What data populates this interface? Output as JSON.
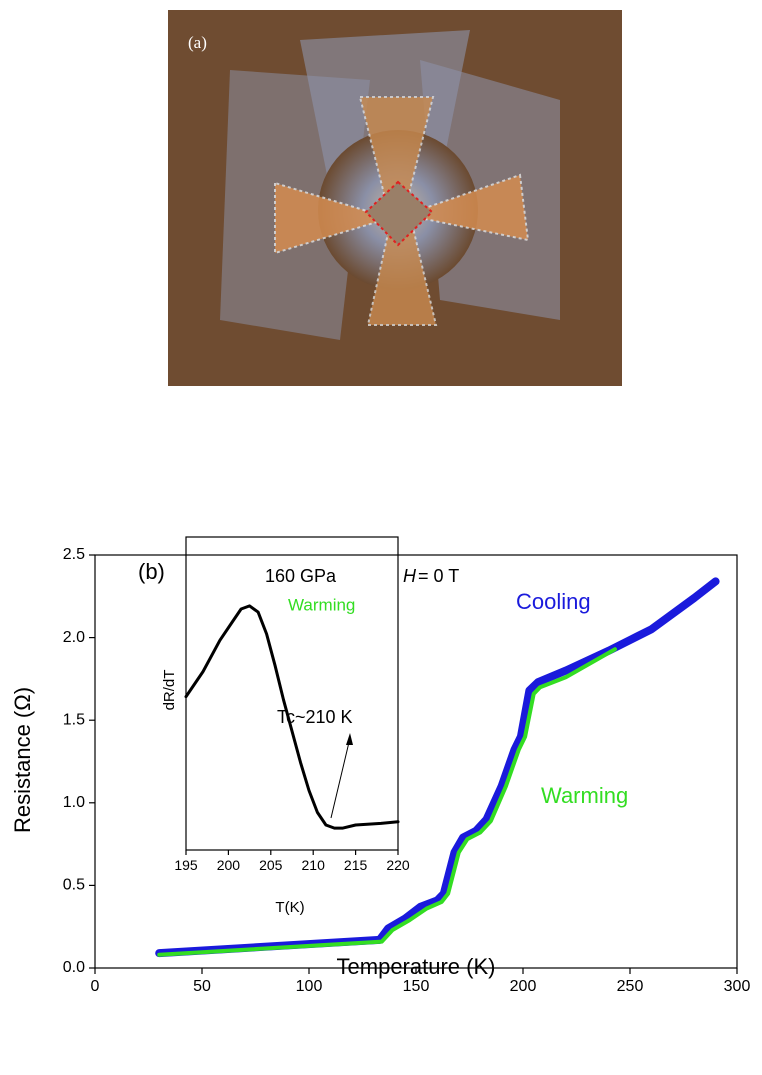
{
  "panel_a": {
    "label": "(a)"
  },
  "chart_data": [
    {
      "type": "line",
      "annotation_label": "(b)",
      "pressure": "160 GPa",
      "field_var": "H",
      "field_value": "= 0 T",
      "xlabel": "Temperature (K)",
      "ylabel": "Resistance (Ω)",
      "xlim": [
        0,
        300
      ],
      "xticks": [
        0,
        50,
        100,
        150,
        200,
        250,
        300
      ],
      "ylim": [
        0,
        2.5
      ],
      "yticks": [
        {
          "value": 0,
          "label": "0.0"
        },
        0.5,
        {
          "value": 1,
          "label": "1.0"
        },
        1.5,
        {
          "value": 2,
          "label": "2.0"
        },
        2.5
      ],
      "series": [
        {
          "name": "Cooling",
          "color": "#1a1adc",
          "x": [
            30,
            133,
            137,
            145,
            152,
            160,
            163,
            168,
            172,
            178,
            183,
            190,
            196,
            199,
            203,
            207,
            220,
            240,
            260,
            280,
            290
          ],
          "values": [
            0.09,
            0.17,
            0.24,
            0.3,
            0.37,
            0.41,
            0.45,
            0.7,
            0.79,
            0.83,
            0.9,
            1.1,
            1.32,
            1.4,
            1.68,
            1.73,
            1.8,
            1.92,
            2.05,
            2.24,
            2.34
          ]
        },
        {
          "name": "Warming",
          "color": "#33dd22",
          "x": [
            30,
            134,
            139,
            147,
            155,
            162,
            165,
            170,
            174,
            180,
            185,
            192,
            198,
            201,
            205,
            208,
            220,
            243
          ],
          "values": [
            0.08,
            0.16,
            0.23,
            0.29,
            0.36,
            0.4,
            0.45,
            0.7,
            0.78,
            0.82,
            0.89,
            1.1,
            1.32,
            1.4,
            1.66,
            1.7,
            1.76,
            1.93
          ]
        }
      ]
    },
    {
      "type": "line",
      "xlabel": "T(K)",
      "ylabel": "dR/dT",
      "annotation": "Tc~210 K",
      "legend_text": "Warming",
      "xlim": [
        195,
        220
      ],
      "xticks": [
        195,
        200,
        205,
        210,
        215,
        220
      ],
      "ylim": [
        0,
        1
      ],
      "series": [
        {
          "color": "#000000",
          "x": [
            195,
            197,
            199,
            200.5,
            201.5,
            202.5,
            203.5,
            204.5,
            205.5,
            206.5,
            207.5,
            208.5,
            209.5,
            210.5,
            211.5,
            212.5,
            213.5,
            215,
            218,
            220
          ],
          "values": [
            0.49,
            0.57,
            0.67,
            0.73,
            0.77,
            0.78,
            0.76,
            0.69,
            0.59,
            0.48,
            0.38,
            0.28,
            0.19,
            0.12,
            0.08,
            0.07,
            0.07,
            0.08,
            0.085,
            0.09
          ]
        }
      ]
    }
  ]
}
